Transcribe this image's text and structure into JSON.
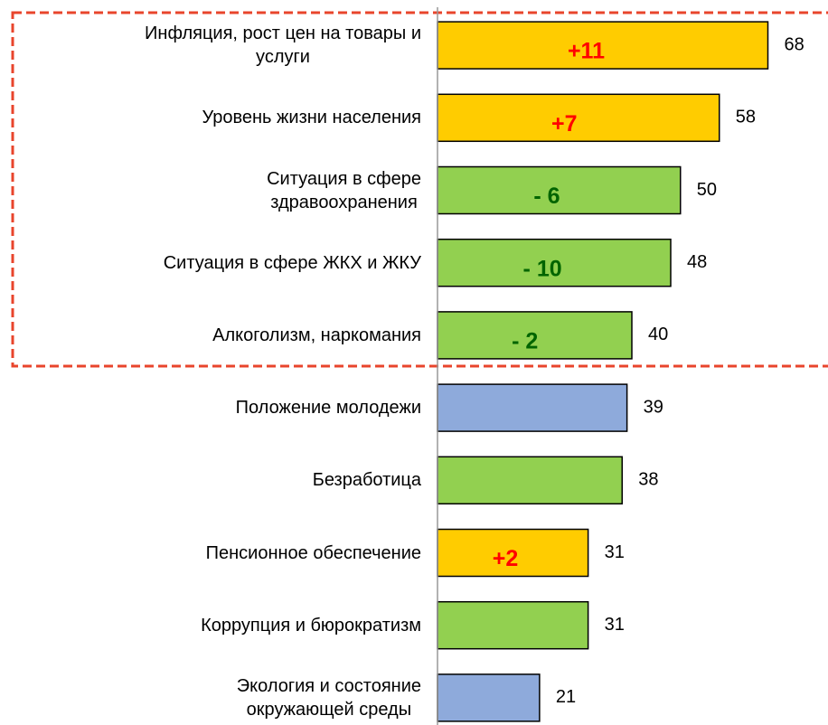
{
  "chart_data": {
    "type": "bar",
    "orientation": "horizontal",
    "categories": [
      "Инфляция, рост цен на товары и\nуслуги",
      "Уровень жизни населения",
      "Ситуация в сфере\nздравоохранения",
      "Ситуация в сфере ЖКХ и ЖКУ",
      "Алкоголизм, наркомания",
      "Положение молодежи",
      "Безработица",
      "Пенсионное обеспечение",
      "Коррупция и бюрократизм",
      "Экология и состояние\nокружающей среды"
    ],
    "values": [
      68,
      58,
      50,
      48,
      40,
      39,
      38,
      31,
      31,
      21
    ],
    "colors": [
      "#ffcc00",
      "#ffcc00",
      "#92d050",
      "#92d050",
      "#92d050",
      "#8eaadb",
      "#92d050",
      "#ffcc00",
      "#92d050",
      "#8eaadb"
    ],
    "annotations": [
      "+11",
      "+7",
      "- 6",
      "- 10",
      "- 2",
      null,
      null,
      "+2",
      null,
      null
    ],
    "annotation_colors": [
      "#ff0000",
      "#ff0000",
      "#006400",
      "#006400",
      "#006400",
      null,
      null,
      "#ff0000",
      null,
      null
    ],
    "xlim": [
      0,
      80
    ]
  }
}
